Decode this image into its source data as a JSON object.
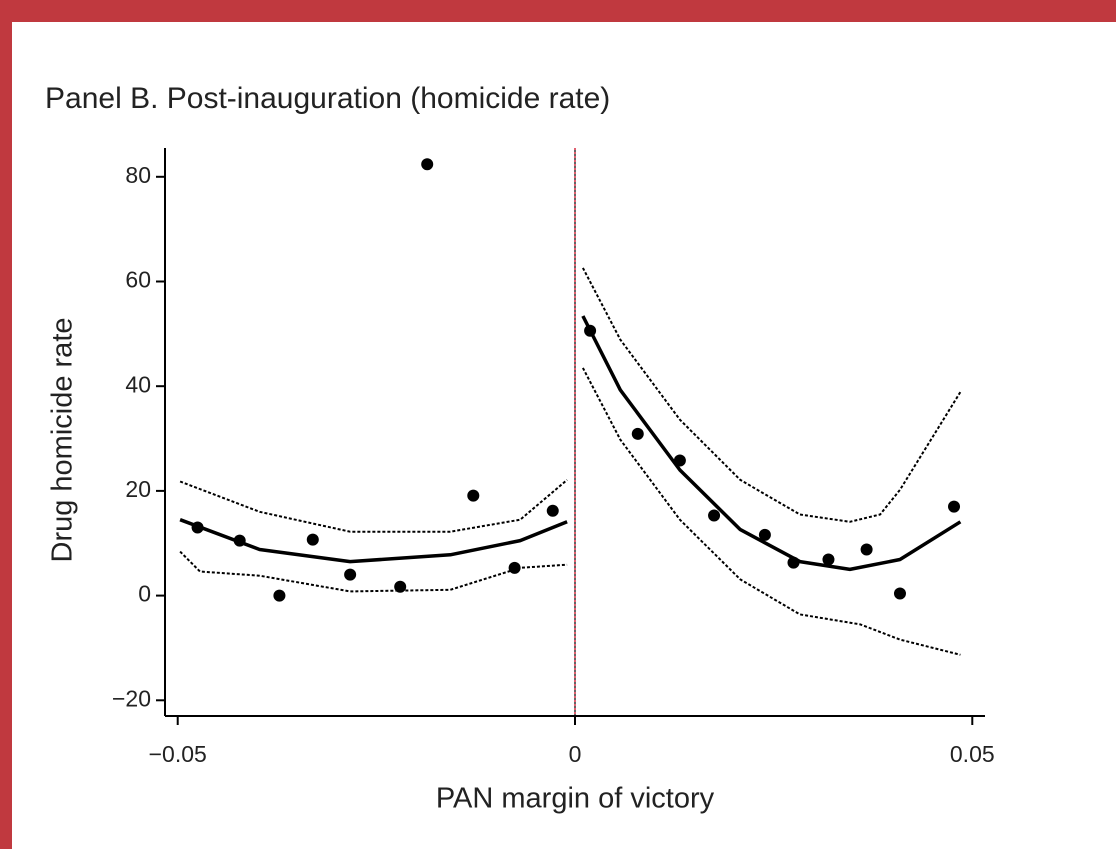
{
  "chart_data": {
    "type": "scatter",
    "title": "Panel B. Post-inauguration (homicide rate)",
    "x_label": "PAN margin of victory",
    "y_label": "Drug homicide rate",
    "xlim": [
      -0.0516,
      0.0516
    ],
    "ylim": [
      -23,
      85.5
    ],
    "xticks": [
      {
        "value": -0.05,
        "label": "−0.05"
      },
      0,
      0.05
    ],
    "yticks": [
      {
        "value": -20,
        "label": "−20"
      },
      0,
      20,
      40,
      60,
      80
    ],
    "vline": 0,
    "color": "#000000",
    "points": {
      "x": [
        -0.0475,
        -0.0422,
        -0.0372,
        -0.033,
        -0.0283,
        -0.022,
        -0.0186,
        -0.0128,
        -0.0076,
        -0.0028,
        0.0019,
        0.0079,
        0.0132,
        0.0175,
        0.0239,
        0.0275,
        0.0319,
        0.0367,
        0.0409,
        0.0477
      ],
      "values": [
        13.0,
        10.5,
        0,
        10.7,
        4.0,
        1.7,
        82.4,
        19.1,
        5.3,
        16.2,
        50.6,
        30.9,
        25.8,
        15.3,
        11.6,
        6.3,
        6.9,
        8.8,
        0.4,
        17.0
      ]
    },
    "lines": [
      {
        "style": "solid",
        "x": [
          -0.0497,
          -0.0397,
          -0.0283,
          -0.0157,
          -0.0069,
          -0.001
        ],
        "values": [
          14.5,
          8.8,
          6.5,
          7.8,
          10.5,
          14.1
        ]
      },
      {
        "style": "dotted",
        "x": [
          -0.0497,
          -0.0397,
          -0.0283,
          -0.0157,
          -0.0069,
          -0.001
        ],
        "values": [
          21.8,
          16.0,
          12.2,
          12.2,
          14.5,
          22.1
        ]
      },
      {
        "style": "dotted",
        "x": [
          -0.0497,
          -0.0472,
          -0.0397,
          -0.0283,
          -0.0157,
          -0.0069,
          -0.001
        ],
        "values": [
          8.4,
          4.6,
          3.8,
          0.8,
          1.1,
          5.3,
          5.9
        ]
      },
      {
        "style": "solid",
        "x": [
          0.001,
          0.0057,
          0.0132,
          0.0208,
          0.0283,
          0.0346,
          0.0409,
          0.0485
        ],
        "values": [
          53.4,
          39.3,
          24.0,
          12.6,
          6.5,
          5.0,
          6.9,
          14.1
        ]
      },
      {
        "style": "dotted",
        "x": [
          0.001,
          0.0057,
          0.0132,
          0.0208,
          0.0283,
          0.0346,
          0.0384,
          0.0409,
          0.0485
        ],
        "values": [
          62.6,
          48.9,
          33.6,
          22.1,
          15.5,
          14.1,
          15.5,
          20.2,
          38.9
        ]
      },
      {
        "style": "dotted",
        "x": [
          0.001,
          0.0057,
          0.0132,
          0.0208,
          0.0283,
          0.0359,
          0.0409,
          0.0485
        ],
        "values": [
          43.5,
          29.8,
          14.5,
          3.1,
          -3.6,
          -5.5,
          -8.4,
          -11.3
        ]
      }
    ]
  }
}
